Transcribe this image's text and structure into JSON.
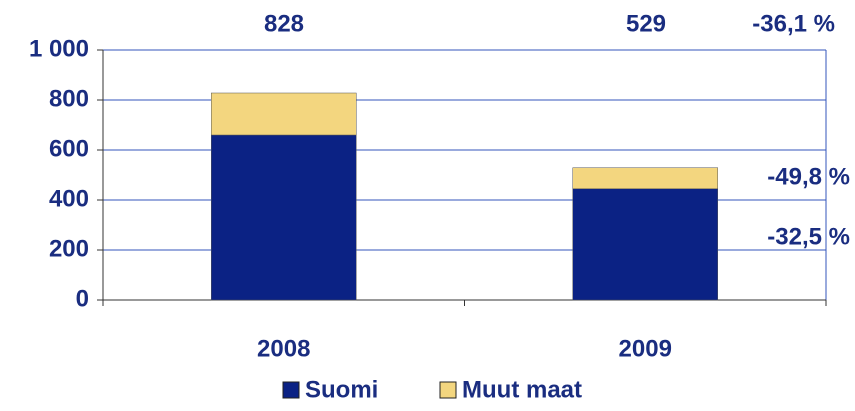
{
  "chart_data": {
    "type": "stacked_bar",
    "categories": [
      "2008",
      "2009"
    ],
    "series": [
      {
        "name": "Suomi",
        "color": "#0b2284",
        "values": [
          660,
          445
        ]
      },
      {
        "name": "Muut maat",
        "color": "#f3d67f",
        "values": [
          168,
          84
        ]
      }
    ],
    "ylim": [
      0,
      1000
    ],
    "yticks": [
      0,
      200,
      400,
      600,
      800,
      {
        "value": 1000,
        "label": "1 000"
      }
    ],
    "grid": true,
    "annotations": [
      "828",
      "529",
      "-36,1 %",
      "-49,8 %",
      "-32,5 %"
    ]
  }
}
